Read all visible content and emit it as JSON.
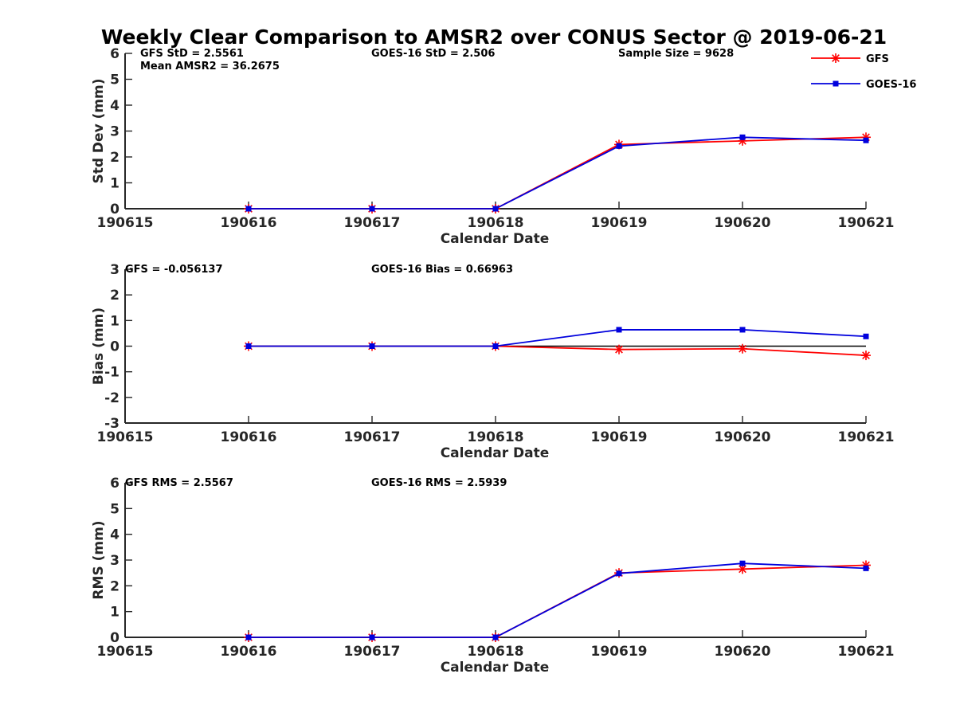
{
  "colors": {
    "GFS": "#ff0000",
    "GOES-16": "#0000dd",
    "zero_line": "#000000",
    "axis": "#262626"
  },
  "chart_data": {
    "type": "line",
    "title": "Weekly Clear Comparison to AMSR2 over CONUS Sector @ 2019-06-21",
    "x_tick_labels": [
      "190615",
      "190616",
      "190617",
      "190618",
      "190619",
      "190620",
      "190621"
    ],
    "legend": {
      "placement": "top-right",
      "entries": [
        "GFS",
        "GOES-16"
      ]
    },
    "panels": [
      {
        "ylabel": "Std Dev (mm)",
        "xlabel": "Calendar Date",
        "ylim": [
          0,
          6
        ],
        "yticks": [
          0,
          1,
          2,
          3,
          4,
          5,
          6
        ],
        "zero_line": false,
        "annotations": [
          {
            "text": "GFS StD = 2.5561",
            "anchor": "left"
          },
          {
            "text": "Mean AMSR2 = 36.2675",
            "anchor": "left-second-line"
          },
          {
            "text": "GOES-16 StD = 2.506",
            "anchor": "middle"
          },
          {
            "text": "Sample Size = 9628",
            "anchor": "right"
          }
        ],
        "x": [
          "190616",
          "190617",
          "190618",
          "190619",
          "190620",
          "190621"
        ],
        "series": [
          {
            "name": "GFS",
            "values": [
              0,
              0,
              0,
              2.48,
              2.62,
              2.76
            ]
          },
          {
            "name": "GOES-16",
            "values": [
              0,
              0,
              0,
              2.42,
              2.76,
              2.64
            ]
          }
        ]
      },
      {
        "ylabel": "Bias (mm)",
        "xlabel": "Calendar Date",
        "ylim": [
          -3,
          3
        ],
        "yticks": [
          -3,
          -2,
          -1,
          0,
          1,
          2,
          3
        ],
        "zero_line": true,
        "annotations": [
          {
            "text": "GFS = -0.056137",
            "anchor": "left"
          },
          {
            "text": "GOES-16 Bias  = 0.66963",
            "anchor": "middle"
          }
        ],
        "x": [
          "190616",
          "190617",
          "190618",
          "190619",
          "190620",
          "190621"
        ],
        "series": [
          {
            "name": "GFS",
            "values": [
              0,
              0,
              0,
              -0.13,
              -0.1,
              -0.36
            ]
          },
          {
            "name": "GOES-16",
            "values": [
              0,
              0,
              0,
              0.64,
              0.64,
              0.38
            ]
          }
        ]
      },
      {
        "ylabel": "RMS (mm)",
        "xlabel": "Calendar Date",
        "ylim": [
          0,
          6
        ],
        "yticks": [
          0,
          1,
          2,
          3,
          4,
          5,
          6
        ],
        "zero_line": false,
        "annotations": [
          {
            "text": "GFS RMS = 2.5567",
            "anchor": "left"
          },
          {
            "text": "GOES-16 RMS = 2.5939",
            "anchor": "middle"
          }
        ],
        "x": [
          "190616",
          "190617",
          "190618",
          "190619",
          "190620",
          "190621"
        ],
        "series": [
          {
            "name": "GFS",
            "values": [
              0,
              0,
              0,
              2.5,
              2.65,
              2.8
            ]
          },
          {
            "name": "GOES-16",
            "values": [
              0,
              0,
              0,
              2.48,
              2.87,
              2.68
            ]
          }
        ]
      }
    ]
  }
}
